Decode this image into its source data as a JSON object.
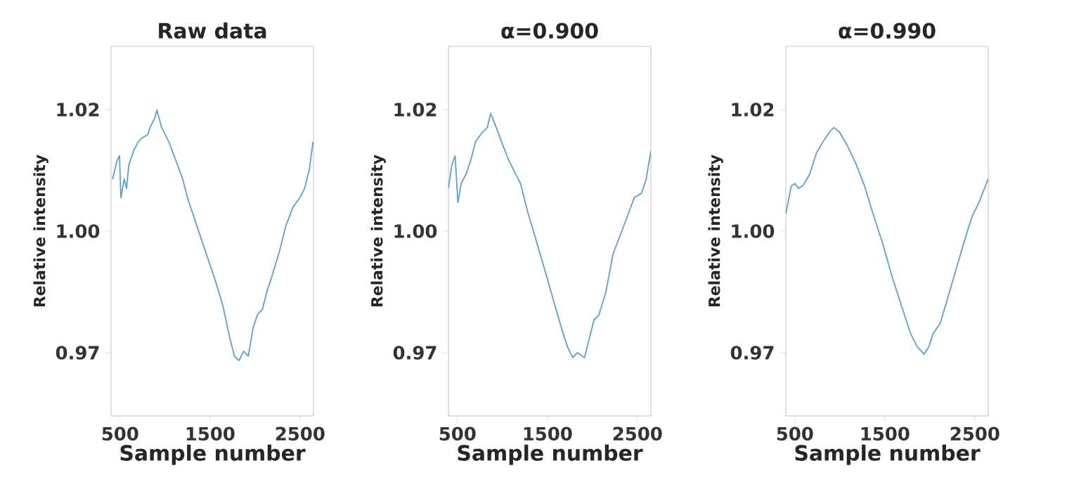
{
  "chart_data": [
    {
      "type": "line",
      "title": "Raw data",
      "xlabel": "Sample number",
      "ylabel": "Relative intensity",
      "color": "#5b9fd3",
      "x": [
        416,
        468,
        494,
        509,
        546,
        572,
        598,
        650,
        702,
        754,
        806,
        832,
        884,
        910,
        962,
        1041,
        1119,
        1197,
        1249,
        1353,
        1457,
        1561,
        1640,
        1718,
        1770,
        1822,
        1874,
        1926,
        1978,
        2030,
        2082,
        2134,
        2186,
        2265,
        2343,
        2421,
        2499,
        2551,
        2603,
        2645
      ],
      "values": [
        1.0057,
        1.0096,
        1.0105,
        1.0019,
        1.0057,
        1.0038,
        1.0086,
        1.0115,
        1.0134,
        1.0143,
        1.0148,
        1.0163,
        1.0182,
        1.0199,
        1.0163,
        1.0134,
        1.0096,
        1.0057,
        1.0019,
        0.9961,
        0.9904,
        0.9847,
        0.9799,
        0.9732,
        0.9693,
        0.9684,
        0.9703,
        0.9693,
        0.9751,
        0.9779,
        0.9789,
        0.9827,
        0.9856,
        0.9904,
        0.9961,
        0.9999,
        1.0019,
        1.0038,
        1.0076,
        1.0134
      ],
      "xlim": [
        400,
        2650
      ],
      "ylim": [
        0.957,
        1.033
      ],
      "xticks": [
        500,
        1500,
        2500
      ],
      "yticks": [
        {
          "value": 0.97,
          "label": "0.97"
        },
        {
          "value": 0.995,
          "label": "1.00"
        },
        {
          "value": 1.02,
          "label": "1.02"
        }
      ]
    },
    {
      "type": "line",
      "title": "α=0.900",
      "xlabel": "Sample number",
      "ylabel": "Relative intensity",
      "color": "#5b9fd3",
      "x": [
        400,
        437,
        474,
        505,
        542,
        595,
        648,
        700,
        779,
        832,
        869,
        911,
        990,
        1069,
        1148,
        1201,
        1280,
        1359,
        1465,
        1570,
        1675,
        1728,
        1781,
        1833,
        1912,
        1965,
        2018,
        2071,
        2150,
        2229,
        2308,
        2387,
        2466,
        2545,
        2598,
        2650
      ],
      "values": [
        1.0038,
        1.0086,
        1.0105,
        1.0009,
        1.0048,
        1.0067,
        1.0096,
        1.0134,
        1.0154,
        1.0163,
        1.0192,
        1.0173,
        1.0134,
        1.0096,
        1.0067,
        1.0048,
        0.999,
        0.9941,
        0.9874,
        0.9806,
        0.9739,
        0.971,
        0.969,
        0.97,
        0.969,
        0.9729,
        0.9768,
        0.9777,
        0.9825,
        0.9903,
        0.9941,
        0.998,
        1.0019,
        1.0028,
        1.0057,
        1.0115
      ],
      "xlim": [
        400,
        2650
      ],
      "ylim": [
        0.957,
        1.033
      ],
      "xticks": [
        500,
        1500,
        2500
      ],
      "yticks": [
        {
          "value": 0.97,
          "label": "0.97"
        },
        {
          "value": 0.995,
          "label": "1.00"
        },
        {
          "value": 1.02,
          "label": "1.02"
        }
      ]
    },
    {
      "type": "line",
      "title": "α=0.990",
      "xlabel": "Sample number",
      "ylabel": "Relative intensity",
      "color": "#5b9fd3",
      "x": [
        400,
        461,
        502,
        537,
        588,
        665,
        741,
        817,
        894,
        934,
        996,
        1072,
        1174,
        1275,
        1377,
        1479,
        1581,
        1683,
        1785,
        1861,
        1937,
        1988,
        2039,
        2115,
        2192,
        2268,
        2344,
        2421,
        2472,
        2548,
        2599,
        2650
      ],
      "values": [
        0.9986,
        1.0043,
        1.0048,
        1.0038,
        1.0043,
        1.0067,
        1.0111,
        1.0135,
        1.0156,
        1.0163,
        1.0154,
        1.013,
        1.0091,
        1.0043,
        0.9981,
        0.9923,
        0.9856,
        0.9798,
        0.974,
        0.9712,
        0.9697,
        0.9712,
        0.974,
        0.976,
        0.9808,
        0.9856,
        0.9904,
        0.9952,
        0.9981,
        1.001,
        1.0034,
        1.0058
      ],
      "xlim": [
        400,
        2650
      ],
      "ylim": [
        0.957,
        1.033
      ],
      "xticks": [
        500,
        1500,
        2500
      ],
      "yticks": [
        {
          "value": 0.97,
          "label": "0.97"
        },
        {
          "value": 0.995,
          "label": "1.00"
        },
        {
          "value": 1.02,
          "label": "1.02"
        }
      ]
    }
  ]
}
